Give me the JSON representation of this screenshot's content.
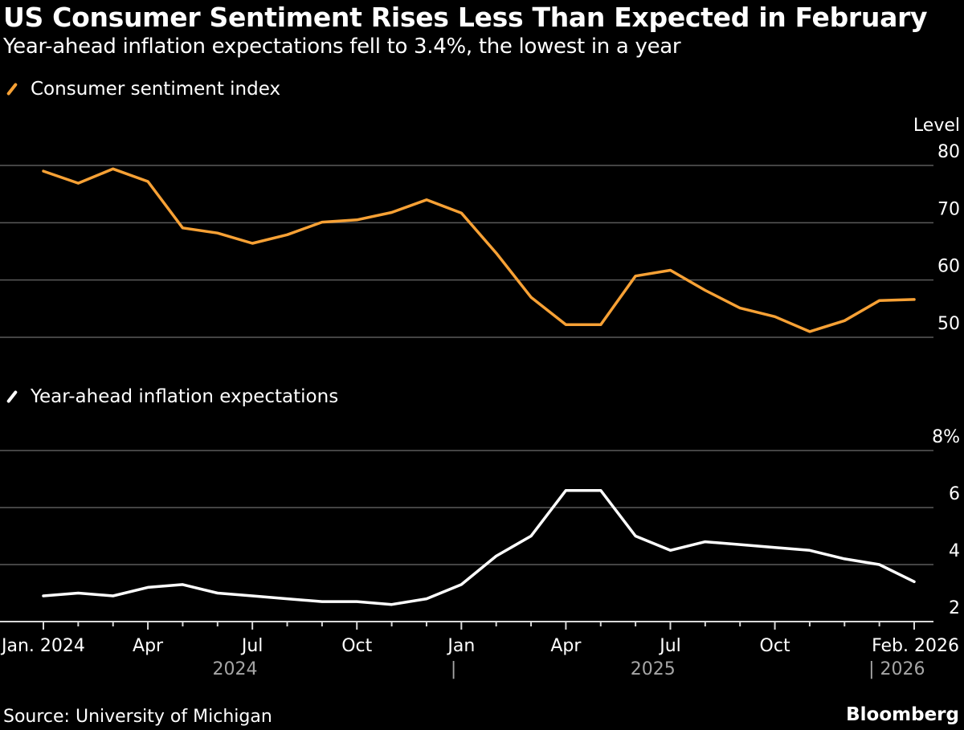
{
  "chart_data": [
    {
      "type": "line",
      "title": "US Consumer Sentiment Rises Less Than Expected in February",
      "subtitle": "Year-ahead inflation expectations fell to 3.4%, the lowest in a year",
      "legend": "Consumer sentiment index",
      "ylabel": "Level",
      "yticks": [
        "80",
        "70",
        "60",
        "50"
      ],
      "ylim": [
        45,
        84
      ],
      "color": "#f7a135",
      "x": [
        "2024-01",
        "2024-02",
        "2024-03",
        "2024-04",
        "2024-05",
        "2024-06",
        "2024-07",
        "2024-08",
        "2024-09",
        "2024-10",
        "2024-11",
        "2024-12",
        "2025-01",
        "2025-02",
        "2025-03",
        "2025-04",
        "2025-05",
        "2025-06",
        "2025-07",
        "2025-08",
        "2025-09",
        "2025-10",
        "2025-11",
        "2025-12",
        "2026-01",
        "2026-02"
      ],
      "values": [
        79.0,
        76.9,
        79.4,
        77.2,
        69.1,
        68.2,
        66.4,
        67.9,
        70.1,
        70.5,
        71.8,
        74.0,
        71.7,
        64.7,
        57.0,
        52.2,
        52.2,
        60.7,
        61.7,
        58.2,
        55.1,
        53.6,
        51.0,
        52.9,
        56.4,
        56.6
      ]
    },
    {
      "type": "line",
      "legend": "Year-ahead inflation expectations",
      "ylabel": "%",
      "yticks": [
        "8%",
        "6",
        "4",
        "2"
      ],
      "ylim": [
        2,
        8
      ],
      "color": "#ffffff",
      "x": [
        "2024-01",
        "2024-02",
        "2024-03",
        "2024-04",
        "2024-05",
        "2024-06",
        "2024-07",
        "2024-08",
        "2024-09",
        "2024-10",
        "2024-11",
        "2024-12",
        "2025-01",
        "2025-02",
        "2025-03",
        "2025-04",
        "2025-05",
        "2025-06",
        "2025-07",
        "2025-08",
        "2025-09",
        "2025-10",
        "2025-11",
        "2025-12",
        "2026-01",
        "2026-02"
      ],
      "values": [
        2.9,
        3.0,
        2.9,
        3.2,
        3.3,
        3.0,
        2.9,
        2.8,
        2.7,
        2.7,
        2.6,
        2.8,
        3.3,
        4.3,
        5.0,
        6.6,
        6.6,
        5.0,
        4.5,
        4.8,
        4.7,
        4.6,
        4.5,
        4.2,
        4.0,
        3.4
      ]
    }
  ],
  "xaxis": {
    "tick_labels": [
      {
        "label": "Jan. 2024",
        "index": 0
      },
      {
        "label": "Apr",
        "index": 3
      },
      {
        "label": "Jul",
        "index": 6
      },
      {
        "label": "Oct",
        "index": 9
      },
      {
        "label": "Jan",
        "index": 12
      },
      {
        "label": "Apr",
        "index": 15
      },
      {
        "label": "Jul",
        "index": 18
      },
      {
        "label": "Oct",
        "index": 21
      },
      {
        "label": "Feb. 2026",
        "index": 25
      }
    ],
    "year_labels": [
      {
        "label": "2024",
        "center_index": 5.5
      },
      {
        "label": "|",
        "center_index": 11.5
      },
      {
        "label": "2025",
        "center_index": 17.5
      },
      {
        "label": "| 2026",
        "center_index": 24.5
      }
    ]
  },
  "footer": {
    "source": "Source: University of Michigan",
    "brand": "Bloomberg"
  },
  "colors": {
    "background": "#000000",
    "grid": "#5a5a5a",
    "sentiment": "#f7a135",
    "inflation": "#ffffff",
    "year_label": "#a6a6a6"
  }
}
